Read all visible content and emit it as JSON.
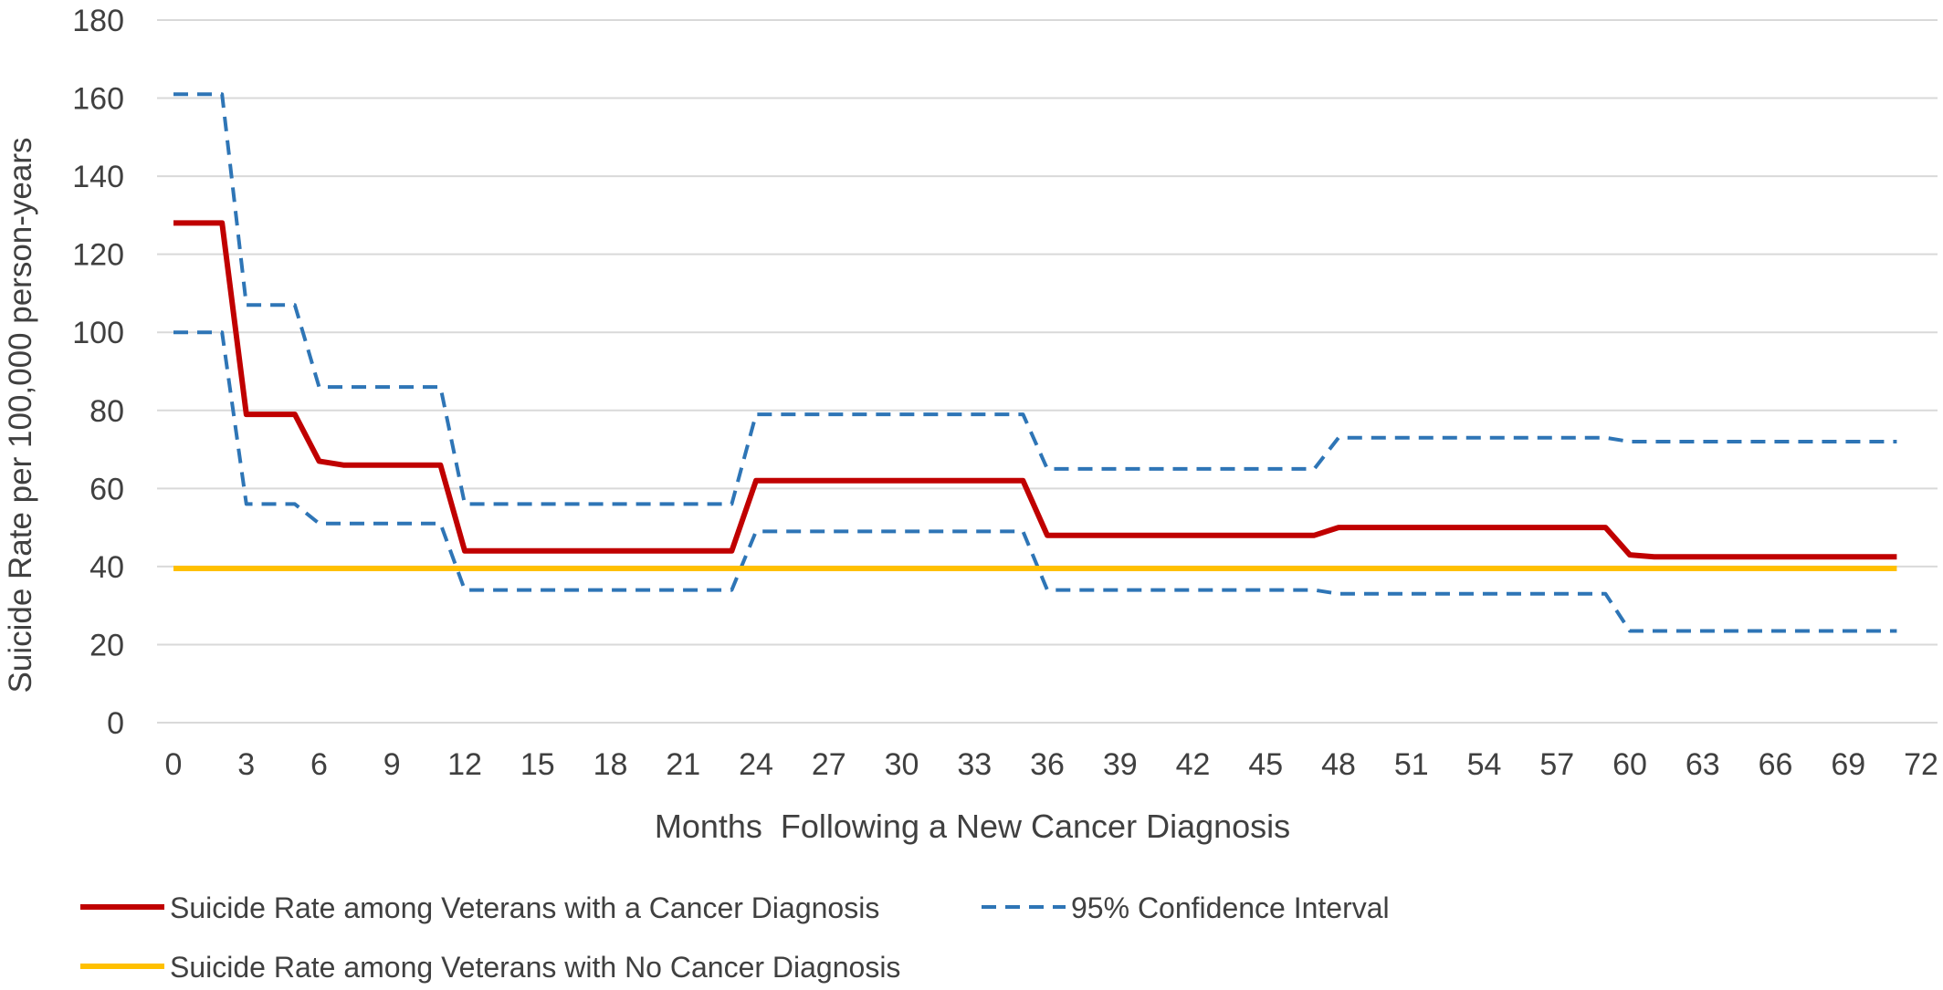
{
  "chart_data": {
    "type": "line",
    "xlabel": "Months  Following a New Cancer Diagnosis",
    "ylabel": "Suicide Rate per 100,000 person-years",
    "xlim": [
      0,
      72
    ],
    "ylim": [
      0,
      180
    ],
    "x_ticks": [
      0,
      3,
      6,
      9,
      12,
      15,
      18,
      21,
      24,
      27,
      30,
      33,
      36,
      39,
      42,
      45,
      48,
      51,
      54,
      57,
      60,
      63,
      66,
      69,
      72
    ],
    "y_ticks": [
      0,
      20,
      40,
      60,
      80,
      100,
      120,
      140,
      160,
      180
    ],
    "grid": "horizontal",
    "legend_position": "bottom",
    "colors": {
      "cancer_rate": "#c00000",
      "confidence_interval": "#2e75b6",
      "no_cancer_rate": "#ffc000",
      "grid": "#d9d9d9",
      "text": "#404040"
    },
    "series": [
      {
        "name": "Suicide Rate among Veterans with a Cancer Diagnosis",
        "style": "solid",
        "color": "#c00000",
        "x": [
          0,
          2,
          3,
          5,
          6,
          7,
          11,
          12,
          23,
          24,
          35,
          36,
          47,
          48,
          59,
          60,
          61,
          71
        ],
        "y": [
          128,
          128,
          79,
          79,
          67,
          66,
          66,
          44,
          44,
          62,
          62,
          48,
          48,
          50,
          50,
          43,
          42.5,
          42.5
        ]
      },
      {
        "name": "95% Confidence Interval",
        "role": "upper",
        "style": "dashed",
        "color": "#2e75b6",
        "x": [
          0,
          2,
          3,
          5,
          6,
          11,
          12,
          23,
          24,
          35,
          36,
          47,
          48,
          59,
          60,
          71
        ],
        "y": [
          161,
          161,
          107,
          107,
          86,
          86,
          56,
          56,
          79,
          79,
          65,
          65,
          73,
          73,
          72,
          72
        ]
      },
      {
        "name": "95% Confidence Interval",
        "role": "lower",
        "style": "dashed",
        "color": "#2e75b6",
        "x": [
          0,
          2,
          3,
          5,
          6,
          11,
          12,
          23,
          24,
          35,
          36,
          47,
          48,
          59,
          60,
          71
        ],
        "y": [
          100,
          100,
          56,
          56,
          51,
          51,
          34,
          34,
          49,
          49,
          34,
          34,
          33,
          33,
          23.5,
          23.5
        ]
      },
      {
        "name": "Suicide Rate among Veterans with No Cancer Diagnosis",
        "style": "solid",
        "color": "#ffc000",
        "x": [
          0,
          71
        ],
        "y": [
          39.5,
          39.5
        ]
      }
    ],
    "legend": [
      {
        "label": "Suicide Rate among Veterans with a Cancer Diagnosis",
        "color": "#c00000",
        "style": "solid"
      },
      {
        "label": "95% Confidence Interval",
        "color": "#2e75b6",
        "style": "dashed"
      },
      {
        "label": "Suicide Rate among Veterans with No Cancer Diagnosis",
        "color": "#ffc000",
        "style": "solid"
      }
    ]
  }
}
